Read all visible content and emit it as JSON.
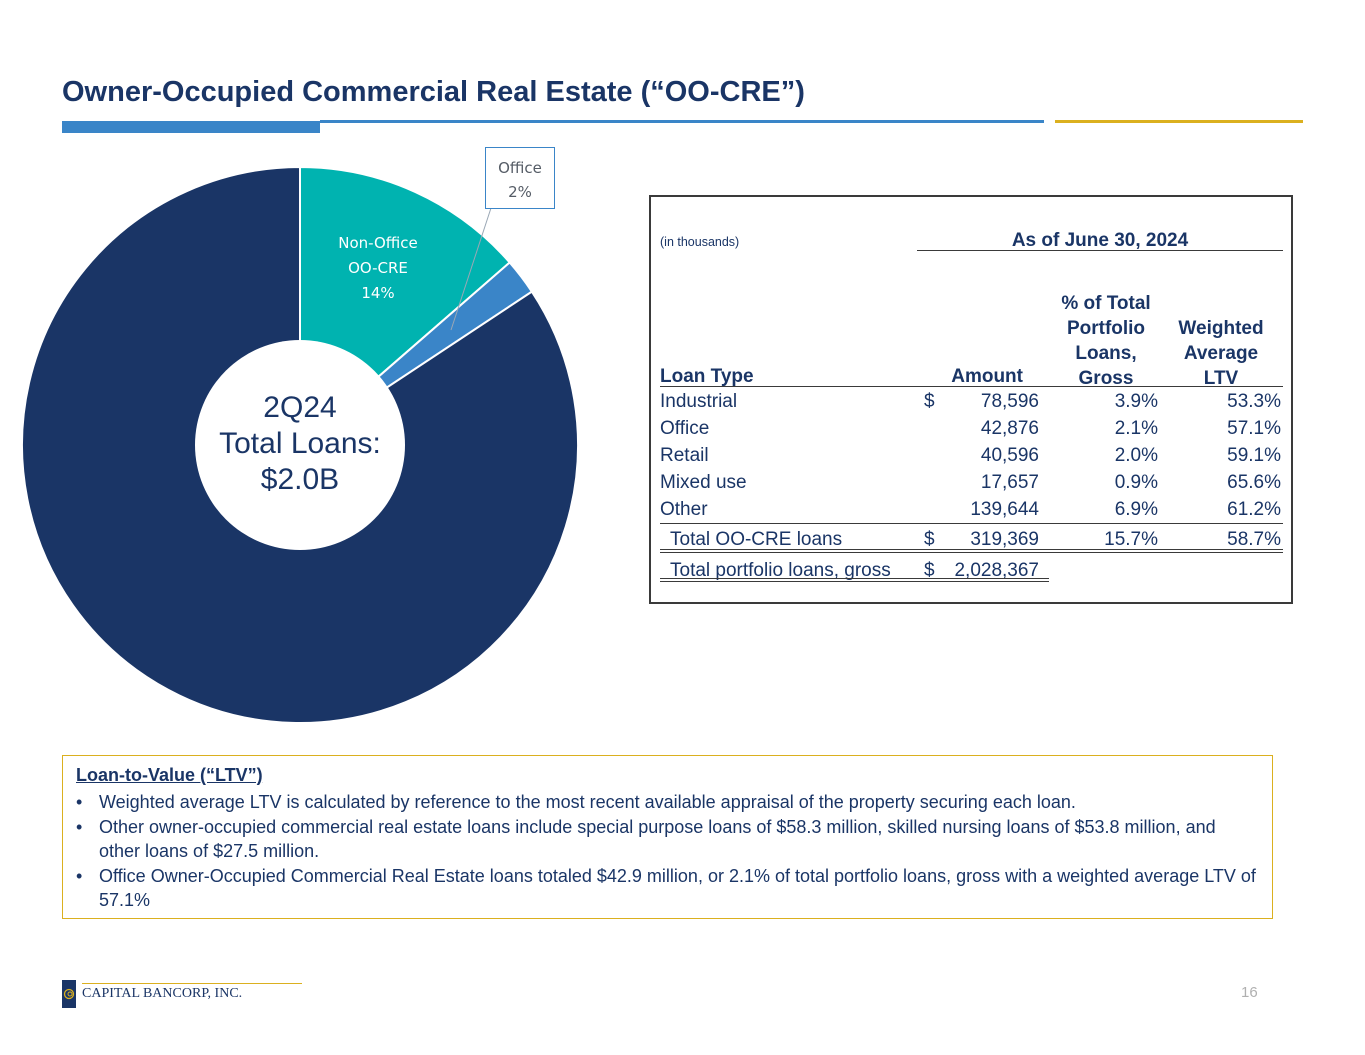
{
  "title": "Owner-Occupied Commercial Real Estate (“OO-CRE”)",
  "colors": {
    "brand_navy": "#1a3566",
    "accent_blue": "#3a85c8",
    "accent_gold": "#dbb01f",
    "teal": "#00b3b0"
  },
  "chart_data": {
    "type": "pie",
    "center_label": [
      "2Q24",
      "Total Loans:",
      "$2.0B"
    ],
    "series": [
      {
        "name": "Non-Office OO-CRE",
        "label": [
          "Non-Office",
          "OO-CRE",
          "14%"
        ],
        "value": 13.6,
        "color": "#00b3b0"
      },
      {
        "name": "Office",
        "label": [
          "Office",
          "2%"
        ],
        "value": 2.1,
        "color": "#3a85c8"
      },
      {
        "name": "Other Loans",
        "label": [],
        "value": 84.3,
        "color": "#1a3566"
      }
    ]
  },
  "table": {
    "units": "(in thousands)",
    "period": "As of June 30, 2024",
    "headers": {
      "loan_type": "Loan Type",
      "amount": "Amount",
      "pct": [
        "% of Total",
        "Portfolio",
        "Loans,",
        "Gross"
      ],
      "ltv": [
        "Weighted",
        "Average",
        "LTV"
      ]
    },
    "rows": [
      {
        "type": "Industrial",
        "dollar": "$",
        "amount": "78,596",
        "pct": "3.9%",
        "ltv": "53.3%"
      },
      {
        "type": "Office",
        "dollar": "",
        "amount": "42,876",
        "pct": "2.1%",
        "ltv": "57.1%"
      },
      {
        "type": "Retail",
        "dollar": "",
        "amount": "40,596",
        "pct": "2.0%",
        "ltv": "59.1%"
      },
      {
        "type": "Mixed use",
        "dollar": "",
        "amount": "17,657",
        "pct": "0.9%",
        "ltv": "65.6%"
      },
      {
        "type": "Other",
        "dollar": "",
        "amount": "139,644",
        "pct": "6.9%",
        "ltv": "61.2%"
      }
    ],
    "total": {
      "type": "Total OO-CRE loans",
      "dollar": "$",
      "amount": "319,369",
      "pct": "15.7%",
      "ltv": "58.7%"
    },
    "portfolio": {
      "type": "Total portfolio loans, gross",
      "dollar": "$",
      "amount": "2,028,367"
    }
  },
  "ltv_box": {
    "title": "Loan-to-Value (“LTV”)",
    "bullets": [
      "Weighted average LTV is calculated by reference to the most recent available appraisal of the property securing each loan.",
      "Other owner-occupied commercial real estate loans include special purpose loans of $58.3 million, skilled nursing loans of $53.8 million, and other loans of $27.5 million.",
      "Office Owner-Occupied Commercial Real Estate loans totaled $42.9 million, or 2.1% of total portfolio loans, gross with a weighted average LTV of 57.1%"
    ]
  },
  "footer": {
    "logo_text": "CAPITAL BANCORP, INC.",
    "page_number": "16"
  }
}
